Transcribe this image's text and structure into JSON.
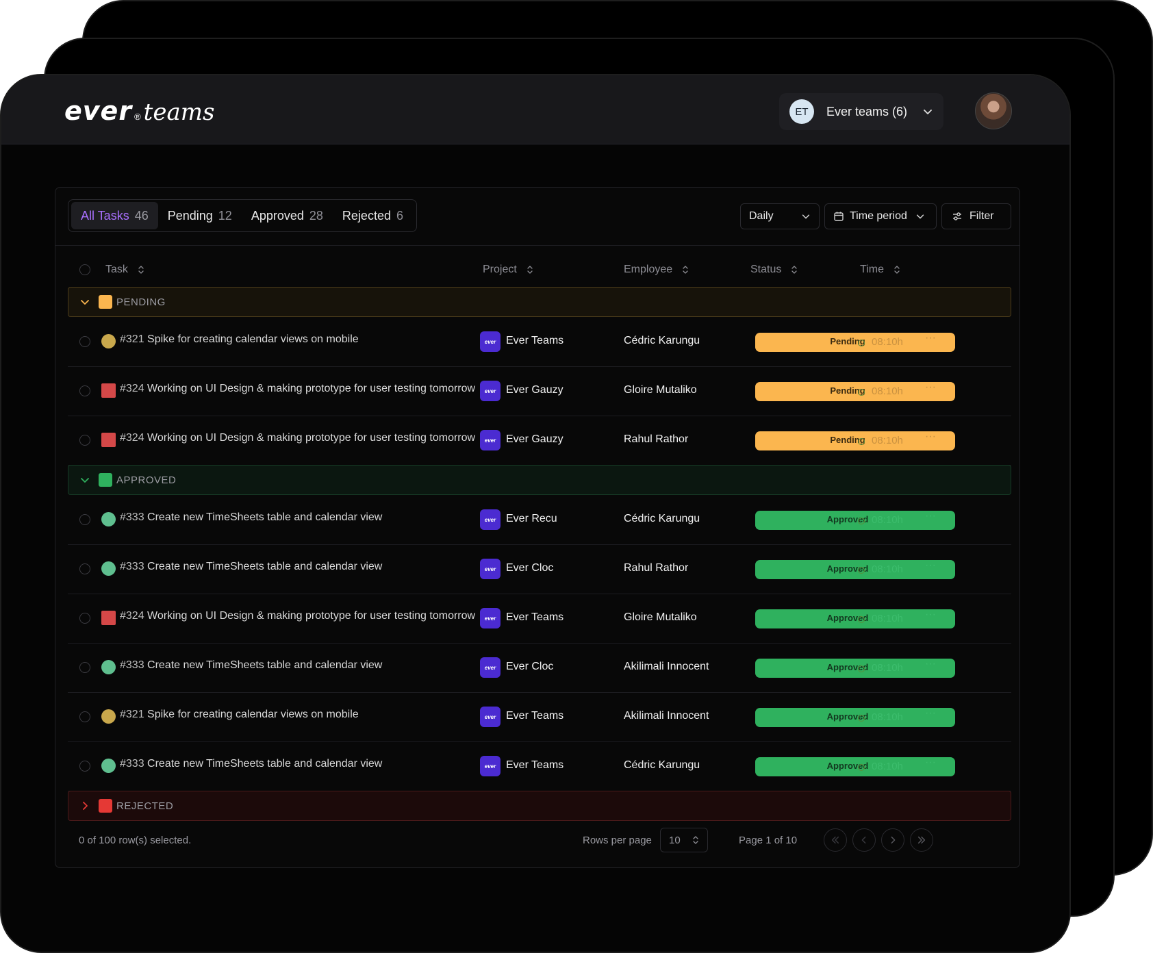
{
  "brand": {
    "word": "ever",
    "reg": "®",
    "product": "teams"
  },
  "team_selector": {
    "initials": "ET",
    "label": "Ever teams (6)"
  },
  "tabs": [
    {
      "label": "All Tasks",
      "count": "46",
      "active": true
    },
    {
      "label": "Pending",
      "count": "12"
    },
    {
      "label": "Approved",
      "count": "28"
    },
    {
      "label": "Rejected",
      "count": "6"
    }
  ],
  "toolbar": {
    "daily": "Daily",
    "time_period": "Time period",
    "filter": "Filter"
  },
  "columns": {
    "task": "Task",
    "project": "Project",
    "employee": "Employee",
    "status": "Status",
    "time": "Time"
  },
  "groups": {
    "pending": {
      "label": "PENDING",
      "color": "#fbb64f"
    },
    "approved": {
      "label": "APPROVED",
      "color": "#2fb15e"
    },
    "rejected": {
      "label": "REJECTED",
      "color": "#e53935"
    }
  },
  "project_logo_text": "ever",
  "rows": [
    {
      "id": "#321",
      "title": "Spike for creating calendar views on mobile",
      "icon": "circle",
      "icon_color": "#c9a84c",
      "project": "Ever Teams",
      "employee": "Cédric Karungu",
      "status": "Pending",
      "time": "08:10h"
    },
    {
      "id": "#324",
      "title": "Working on UI Design & making prototype for user testing tomorrow",
      "icon": "square",
      "icon_color": "#d44848",
      "project": "Ever Gauzy",
      "employee": "Gloire Mutaliko",
      "status": "Pending",
      "time": "08:10h"
    },
    {
      "id": "#324",
      "title": "Working on UI Design & making prototype for user testing tomorrow",
      "icon": "square",
      "icon_color": "#d44848",
      "project": "Ever Gauzy",
      "employee": "Rahul Rathor",
      "status": "Pending",
      "time": "08:10h"
    },
    {
      "id": "#333",
      "title": "Create new TimeSheets table and calendar view",
      "icon": "circle",
      "icon_color": "#5fbf8f",
      "project": "Ever Recu",
      "employee": "Cédric Karungu",
      "status": "Approved",
      "time": "08:10h"
    },
    {
      "id": "#333",
      "title": "Create new TimeSheets table and calendar view",
      "icon": "circle",
      "icon_color": "#5fbf8f",
      "project": "Ever Cloc",
      "employee": "Rahul Rathor",
      "status": "Approved",
      "time": "08:10h"
    },
    {
      "id": "#324",
      "title": "Working on UI Design & making prototype for user testing tomorrow",
      "icon": "square",
      "icon_color": "#d44848",
      "project": "Ever Teams",
      "employee": "Gloire Mutaliko",
      "status": "Approved",
      "time": "08:10h"
    },
    {
      "id": "#333",
      "title": "Create new TimeSheets table and calendar view",
      "icon": "circle",
      "icon_color": "#5fbf8f",
      "project": "Ever Cloc",
      "employee": "Akilimali Innocent",
      "status": "Approved",
      "time": "08:10h"
    },
    {
      "id": "#321",
      "title": "Spike for creating calendar views on mobile",
      "icon": "circle",
      "icon_color": "#c9a84c",
      "project": "Ever Teams",
      "employee": "Akilimali Innocent",
      "status": "Approved",
      "time": "08:10h"
    },
    {
      "id": "#333",
      "title": "Create new TimeSheets table and calendar view",
      "icon": "circle",
      "icon_color": "#5fbf8f",
      "project": "Ever Teams",
      "employee": "Cédric Karungu",
      "status": "Approved",
      "time": "08:10h"
    }
  ],
  "footer": {
    "selected": "0 of 100 row(s) selected.",
    "rows_per_page_label": "Rows per page",
    "rows_per_page": "10",
    "page": "Page 1 of 10"
  }
}
